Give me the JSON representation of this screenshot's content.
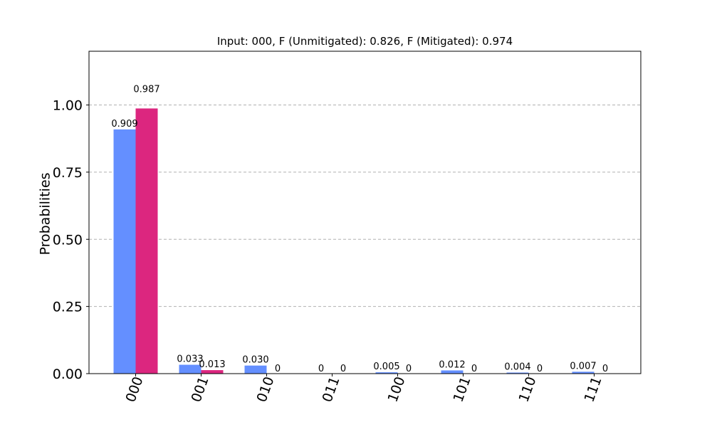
{
  "chart_data": {
    "type": "bar",
    "title": "Input: 000, F (Unmitigated): 0.826, F (Mitigated): 0.974",
    "xlabel": "",
    "ylabel": "Probabilities",
    "ylim": [
      0,
      1.2
    ],
    "yticks": [
      "0.00",
      "0.25",
      "0.50",
      "0.75",
      "1.00"
    ],
    "ytick_values": [
      0,
      0.25,
      0.5,
      0.75,
      1.0
    ],
    "grid": "horizontal dashed",
    "categories": [
      "000",
      "001",
      "010",
      "011",
      "100",
      "101",
      "110",
      "111"
    ],
    "series": [
      {
        "color": "#648fff",
        "values": [
          0.909,
          0.033,
          0.03,
          0,
          0.005,
          0.012,
          0.004,
          0.007
        ],
        "labels": [
          "0.909",
          "0.033",
          "0.030",
          "0",
          "0.005",
          "0.012",
          "0.004",
          "0.007"
        ]
      },
      {
        "color": "#dc267f",
        "values": [
          0.987,
          0.013,
          0,
          0,
          0,
          0,
          0,
          0
        ],
        "labels": [
          "0.987",
          "0.013",
          "0",
          "0",
          "0",
          "0",
          "0",
          "0"
        ]
      }
    ]
  }
}
